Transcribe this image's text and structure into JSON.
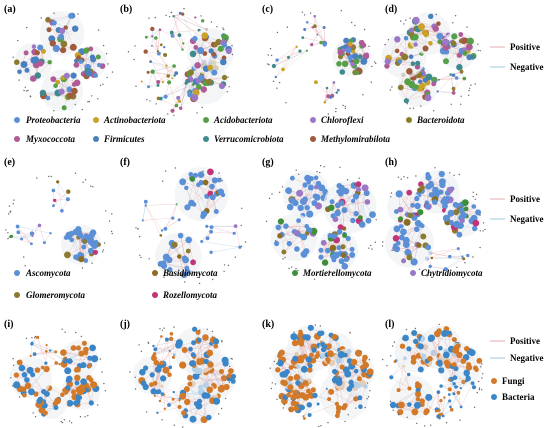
{
  "colors": {
    "phylum": [
      "#5b8fd6",
      "#c9a227",
      "#55a047",
      "#9a78c6",
      "#8c7a2f",
      "#b05a96",
      "#4a7fc0",
      "#3e8a8e",
      "#a05a3c"
    ],
    "fungal_phylum": [
      "#5b8fd6",
      "#8c6d1f",
      "#3f8f3a",
      "#9a78c6",
      "#8c7a2f",
      "#c2347a"
    ],
    "kingdom": {
      "fungi": "#d27a2a",
      "bacteria": "#3a86c8"
    },
    "edges": {
      "positive": "#e8a8a8",
      "negative": "#9fc7e0"
    },
    "module_fill": "#eef1f4"
  },
  "panels": [
    {
      "label": "(a)",
      "legend_group": "bacteria"
    },
    {
      "label": "(b)",
      "legend_group": "bacteria"
    },
    {
      "label": "(c)",
      "legend_group": "bacteria"
    },
    {
      "label": "(d)",
      "legend_group": "bacteria"
    },
    {
      "label": "(e)",
      "legend_group": "fungi"
    },
    {
      "label": "(f)",
      "legend_group": "fungi"
    },
    {
      "label": "(g)",
      "legend_group": "fungi"
    },
    {
      "label": "(h)",
      "legend_group": "fungi"
    },
    {
      "label": "(i)",
      "legend_group": "interkingdom"
    },
    {
      "label": "(j)",
      "legend_group": "interkingdom"
    },
    {
      "label": "(k)",
      "legend_group": "interkingdom"
    },
    {
      "label": "(l)",
      "legend_group": "interkingdom"
    }
  ],
  "legend_bacteria": [
    {
      "name": "Proteobacteria",
      "color": "#5b8fd6"
    },
    {
      "name": "Actinobacteriota",
      "color": "#c9a227"
    },
    {
      "name": "Acidobacteriota",
      "color": "#55a047"
    },
    {
      "name": "Chloroflexi",
      "color": "#9a78c6"
    },
    {
      "name": "Bacteroidota",
      "color": "#8c7a2f"
    },
    {
      "name": "Myxococcota",
      "color": "#b05a96"
    },
    {
      "name": "Firmicutes",
      "color": "#4a7fc0"
    },
    {
      "name": "Verrucomicrobiota",
      "color": "#3e8a8e"
    },
    {
      "name": "Methylomirabilota",
      "color": "#a05a3c"
    }
  ],
  "legend_fungi": [
    {
      "name": "Ascomycota",
      "color": "#5b8fd6"
    },
    {
      "name": "Basidiomycota",
      "color": "#8c6d1f"
    },
    {
      "name": "Mortierellomycota",
      "color": "#3f8f3a"
    },
    {
      "name": "Chytridiomycota",
      "color": "#9a78c6"
    },
    {
      "name": "Glomeromycota",
      "color": "#8c7a2f"
    },
    {
      "name": "Rozellomycota",
      "color": "#c2347a"
    }
  ],
  "edge_legend": {
    "positive": "Positive",
    "negative": "Negative"
  },
  "kingdom_legend": {
    "fungi": "Fungi",
    "bacteria": "Bacteria"
  }
}
